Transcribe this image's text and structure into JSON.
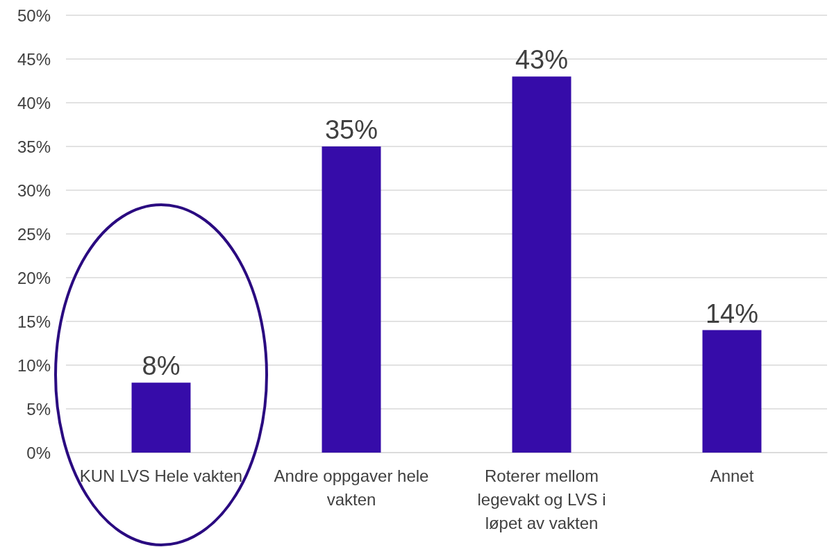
{
  "chart_data": {
    "type": "bar",
    "categories": [
      "KUN LVS Hele vakten",
      "Andre oppgaver hele vakten",
      "Roterer mellom legevakt og LVS i løpet av vakten",
      "Annet"
    ],
    "values": [
      8,
      35,
      43,
      14
    ],
    "value_labels": [
      "8%",
      "35%",
      "43%",
      "14%"
    ],
    "color": "#360ca9",
    "ylim": [
      0,
      50
    ],
    "yticks": [
      {
        "value": 0,
        "label": "0%"
      },
      {
        "value": 5,
        "label": "5%"
      },
      {
        "value": 10,
        "label": "10%"
      },
      {
        "value": 15,
        "label": "15%"
      },
      {
        "value": 20,
        "label": "20%"
      },
      {
        "value": 25,
        "label": "25%"
      },
      {
        "value": 30,
        "label": "30%"
      },
      {
        "value": 35,
        "label": "35%"
      },
      {
        "value": 40,
        "label": "40%"
      },
      {
        "value": 45,
        "label": "45%"
      },
      {
        "value": 50,
        "label": "50%"
      }
    ],
    "grid": "y"
  }
}
